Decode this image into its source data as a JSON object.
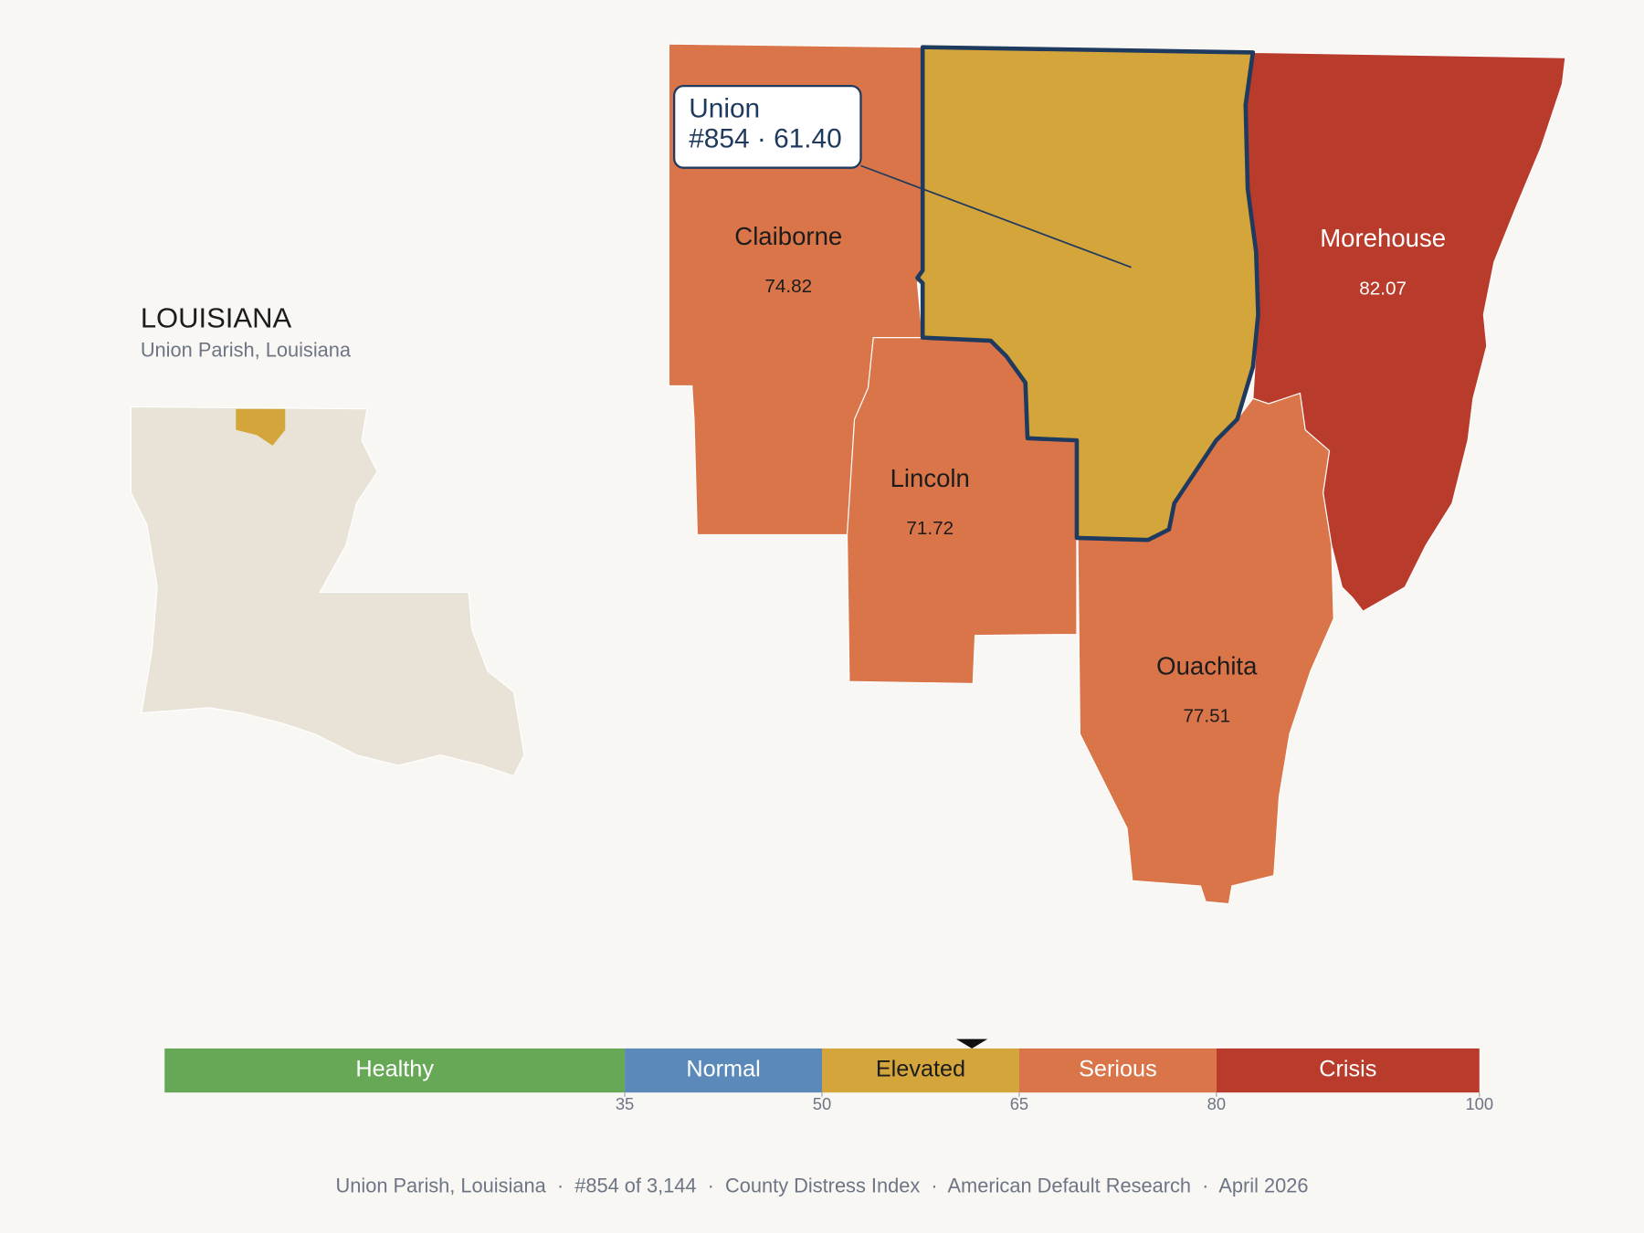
{
  "header": {
    "title": "LOUISIANA",
    "subtitle": "Union Parish, Louisiana"
  },
  "callout": {
    "name": "Union",
    "detail": "#854 · 61.40"
  },
  "parishes": [
    {
      "name": "Claiborne",
      "score": "74.82",
      "color": "#da7549"
    },
    {
      "name": "Union",
      "score": "61.40",
      "color": "#d4a53a"
    },
    {
      "name": "Lincoln",
      "score": "71.72",
      "color": "#da7549"
    },
    {
      "name": "Ouachita",
      "score": "77.51",
      "color": "#da7549"
    },
    {
      "name": "Morehouse",
      "score": "82.07",
      "color": "#b93b2b"
    }
  ],
  "scale": {
    "min": 0,
    "max": 100,
    "ticks": [
      35,
      50,
      65,
      80,
      100
    ],
    "marker": 61.4,
    "bands": [
      {
        "label": "Healthy",
        "color": "#67a857"
      },
      {
        "label": "Normal",
        "color": "#5b8aba"
      },
      {
        "label": "Elevated",
        "color": "#d4a53a"
      },
      {
        "label": "Serious",
        "color": "#da7549"
      },
      {
        "label": "Crisis",
        "color": "#b93b2b"
      }
    ]
  },
  "footer": "Union Parish, Louisiana  ·  #854 of 3,144  ·  County Distress Index  ·  American Default Research  ·  April 2026"
}
